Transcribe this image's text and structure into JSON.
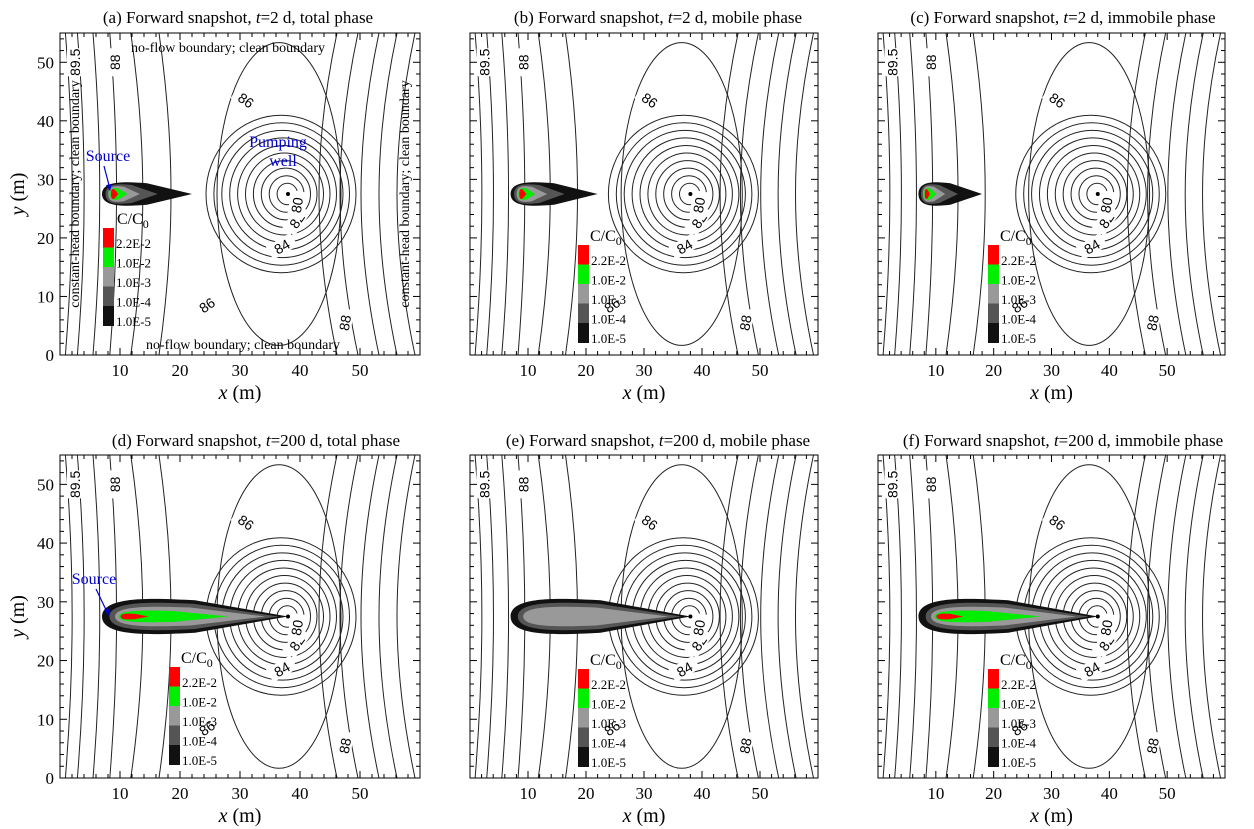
{
  "chart_data": [
    {
      "type": "contour",
      "panel_label": "(a)",
      "title_pre": "(a) Forward snapshot, ",
      "title_t": "t",
      "title_post": "=2 d, total phase",
      "xlabel": "x",
      "xunit": " (m)",
      "ylabel": "y",
      "yunit": " (m)",
      "xlim": [
        0,
        60
      ],
      "ylim": [
        0,
        55
      ],
      "xticks": [
        10,
        20,
        30,
        40,
        50
      ],
      "yticks": [
        0,
        10,
        20,
        30,
        40,
        50
      ],
      "time_days": 2,
      "phase": "total",
      "head_contours": [
        "89.5",
        "88",
        "86",
        "84",
        "82",
        "80"
      ],
      "plume": {
        "x_start": 7,
        "x_end": 22,
        "y_center": 27.5,
        "levels_present": [
          "1.0E-5",
          "1.0E-4",
          "1.0E-3",
          "1.0E-2",
          "2.2E-2"
        ]
      },
      "show_annotations": true,
      "show_y_axis_label": true
    },
    {
      "type": "contour",
      "panel_label": "(b)",
      "title_pre": "(b) Forward snapshot, ",
      "title_t": "t",
      "title_post": "=2 d, mobile phase",
      "xlabel": "x",
      "xunit": " (m)",
      "xlim": [
        0,
        60
      ],
      "ylim": [
        0,
        55
      ],
      "xticks": [
        10,
        20,
        30,
        40,
        50
      ],
      "time_days": 2,
      "phase": "mobile",
      "head_contours": [
        "89.5",
        "88",
        "86",
        "84",
        "82",
        "80"
      ],
      "plume": {
        "x_start": 7,
        "x_end": 22,
        "y_center": 27.5,
        "levels_present": [
          "1.0E-5",
          "1.0E-4",
          "1.0E-3",
          "1.0E-2",
          "2.2E-2"
        ]
      }
    },
    {
      "type": "contour",
      "panel_label": "(c)",
      "title_pre": "(c) Forward snapshot, ",
      "title_t": "t",
      "title_post": "=2 d, immobile phase",
      "xlabel": "x",
      "xunit": " (m)",
      "xlim": [
        0,
        60
      ],
      "ylim": [
        0,
        55
      ],
      "xticks": [
        10,
        20,
        30,
        40,
        50
      ],
      "time_days": 2,
      "phase": "immobile",
      "head_contours": [
        "89.5",
        "88",
        "86",
        "84",
        "82",
        "80"
      ],
      "plume": {
        "x_start": 7,
        "x_end": 18,
        "y_center": 27.5,
        "levels_present": [
          "1.0E-5",
          "1.0E-4",
          "1.0E-3",
          "1.0E-2",
          "2.2E-2"
        ]
      }
    },
    {
      "type": "contour",
      "panel_label": "(d)",
      "title_pre": "(d) Forward snapshot, ",
      "title_t": "t",
      "title_post": "=200 d, total phase",
      "xlabel": "x",
      "xunit": " (m)",
      "ylabel": "y",
      "yunit": " (m)",
      "xlim": [
        0,
        60
      ],
      "ylim": [
        0,
        55
      ],
      "xticks": [
        10,
        20,
        30,
        40,
        50
      ],
      "yticks": [
        0,
        10,
        20,
        30,
        40,
        50
      ],
      "time_days": 200,
      "phase": "total",
      "head_contours": [
        "89.5",
        "88",
        "86",
        "84",
        "82",
        "80"
      ],
      "plume": {
        "x_start": 7,
        "x_end": 38,
        "y_center": 27.5,
        "levels_present": [
          "1.0E-5",
          "1.0E-4",
          "1.0E-3",
          "1.0E-2",
          "2.2E-2"
        ]
      },
      "show_y_axis_label": true
    },
    {
      "type": "contour",
      "panel_label": "(e)",
      "title_pre": "(e) Forward snapshot, ",
      "title_t": "t",
      "title_post": "=200 d, mobile phase",
      "xlabel": "x",
      "xunit": " (m)",
      "xlim": [
        0,
        60
      ],
      "ylim": [
        0,
        55
      ],
      "xticks": [
        10,
        20,
        30,
        40,
        50
      ],
      "time_days": 200,
      "phase": "mobile",
      "head_contours": [
        "89.5",
        "88",
        "86",
        "84",
        "82",
        "80"
      ],
      "plume": {
        "x_start": 7,
        "x_end": 38,
        "y_center": 27.5,
        "levels_present": [
          "1.0E-5",
          "1.0E-4",
          "1.0E-3"
        ]
      }
    },
    {
      "type": "contour",
      "panel_label": "(f)",
      "title_pre": "(f) Forward snapshot, ",
      "title_t": "t",
      "title_post": "=200 d, immobile phase",
      "xlabel": "x",
      "xunit": " (m)",
      "xlim": [
        0,
        60
      ],
      "ylim": [
        0,
        55
      ],
      "xticks": [
        10,
        20,
        30,
        40,
        50
      ],
      "time_days": 200,
      "phase": "immobile",
      "head_contours": [
        "89.5",
        "88",
        "86",
        "84",
        "82",
        "80"
      ],
      "plume": {
        "x_start": 7,
        "x_end": 38,
        "y_center": 27.5,
        "levels_present": [
          "1.0E-5",
          "1.0E-4",
          "1.0E-3",
          "1.0E-2",
          "2.2E-2"
        ]
      }
    }
  ],
  "legend": {
    "title_main": "C/C",
    "title_sub": "0",
    "levels": [
      {
        "label": "2.2E-2",
        "color": "#ff0000"
      },
      {
        "label": "1.0E-2",
        "color": "#00ee00"
      },
      {
        "label": "1.0E-3",
        "color": "#999999"
      },
      {
        "label": "1.0E-4",
        "color": "#555555"
      },
      {
        "label": "1.0E-5",
        "color": "#111111"
      }
    ]
  },
  "annotations": {
    "top_boundary": "no-flow boundary; clean boundary",
    "bottom_boundary": "no-flow boundary; clean boundary",
    "left_boundary": "constant-head boundary; clean boundary",
    "right_boundary": "constant-head boundary; clean boundary",
    "source": "Source",
    "pumping_well_line1": "Pumping",
    "pumping_well_line2": "well"
  },
  "colors": {
    "source_arrow": "#0000cc",
    "contour_line": "#222222",
    "frame": "#000000"
  }
}
